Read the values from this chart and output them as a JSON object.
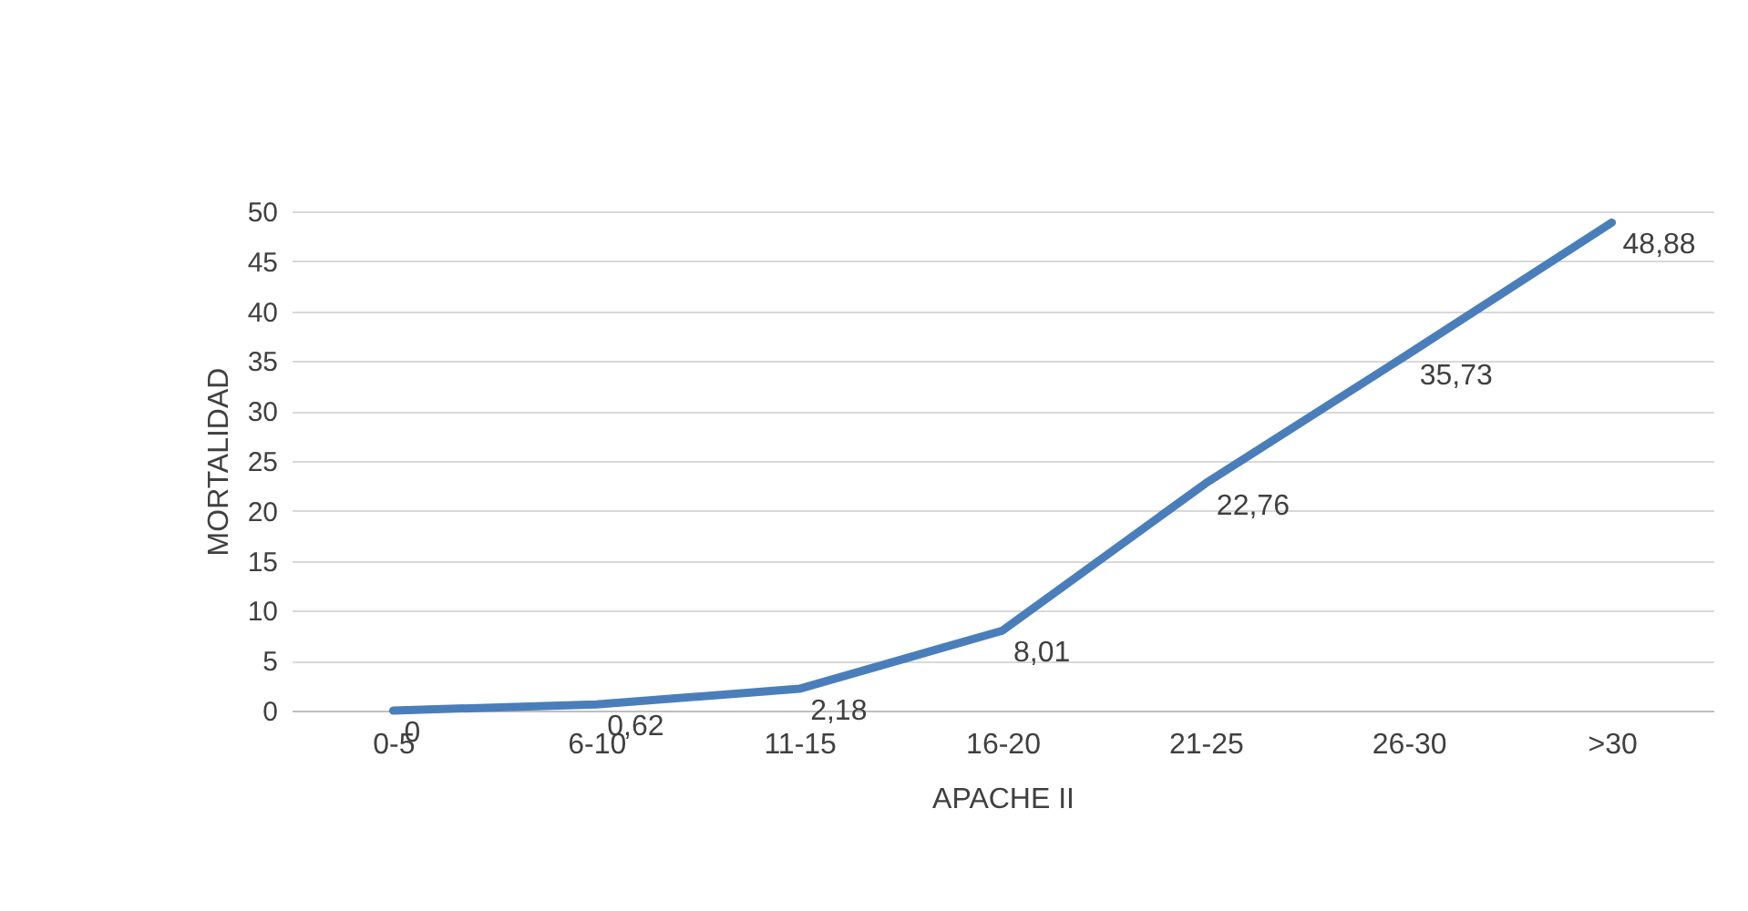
{
  "chart_data": {
    "type": "line",
    "xlabel": "APACHE II",
    "ylabel": "MORTALIDAD",
    "categories": [
      "0-5",
      "6-10",
      "11-15",
      "16-20",
      "21-25",
      "26-30",
      ">30"
    ],
    "series": [
      {
        "color": "#4a7ebb",
        "values": [
          0,
          0.62,
          2.18,
          8.01,
          22.76,
          35.73,
          48.88
        ],
        "value_labels": [
          "0",
          "0,62",
          "2,18",
          "8,01",
          "22,76",
          "35,73",
          "48,88"
        ]
      }
    ],
    "ylim": [
      0,
      50
    ],
    "yticks": [
      0,
      5,
      10,
      15,
      20,
      25,
      30,
      35,
      40,
      45,
      50
    ],
    "grid": "y",
    "legend": false,
    "marker": "none",
    "line_style": "solid"
  }
}
